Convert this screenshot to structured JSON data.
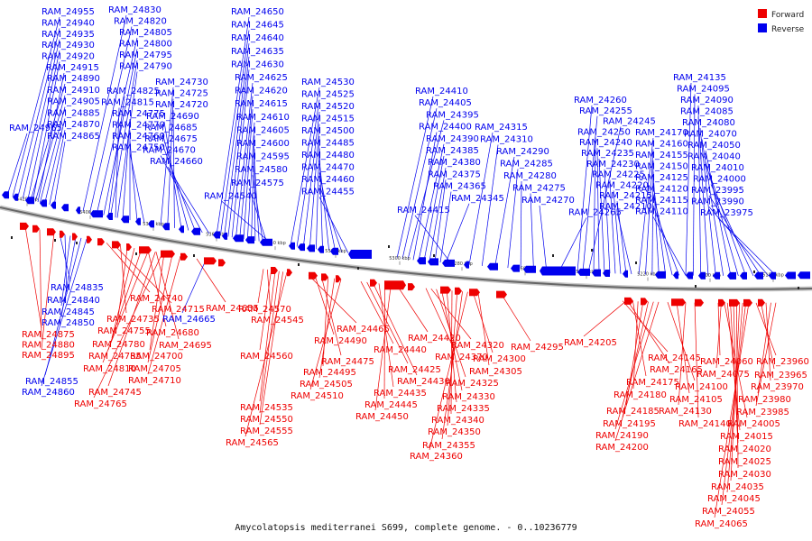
{
  "legend": {
    "forward": {
      "label": "Forward",
      "color": "#ee0000"
    },
    "reverse": {
      "label": "Reverse",
      "color": "#0000ee"
    }
  },
  "caption": "Amycolatopsis mediterranei S699, complete genome. - 0..10236779",
  "axis": {
    "ticks": [
      "5420 kbp",
      "5400 kbp",
      "5380 kbp",
      "5360 kbp",
      "5340 kbp",
      "5320 kbp",
      "5300 kbp",
      "5280 kbp",
      "5260 kbp",
      "5240 kbp",
      "5220 kbp",
      "5200 kbp",
      "5180 kbp"
    ]
  },
  "reverse_groups": [
    {
      "labels": [
        "RAM_24955",
        "RAM_24940",
        "RAM_24935",
        "RAM_24930",
        "RAM_24920",
        "RAM_24915"
      ]
    },
    {
      "labels": [
        "RAM_24890",
        "RAM_24910",
        "RAM_24905",
        "RAM_24885",
        "RAM_24870",
        "RAM_24865"
      ]
    },
    {
      "labels": [
        "RAM_24965"
      ]
    },
    {
      "labels": [
        "RAM_24830",
        "RAM_24820",
        "RAM_24805",
        "RAM_24800",
        "RAM_24795",
        "RAM_24790"
      ]
    },
    {
      "labels": [
        "RAM_24825",
        "RAM_24815",
        "RAM_24775",
        "RAM_24770",
        "RAM_24760",
        "RAM_24750"
      ]
    },
    {
      "labels": [
        "RAM_24730",
        "RAM_24725",
        "RAM_24720",
        "RAM_24690",
        "RAM_24685",
        "RAM_24675",
        "RAM_24670",
        "RAM_24660"
      ]
    },
    {
      "labels": [
        "RAM_24650",
        "RAM_24645",
        "RAM_24640",
        "RAM_24635",
        "RAM_24630",
        "RAM_24625",
        "RAM_24620",
        "RAM_24615",
        "RAM_24610",
        "RAM_24605",
        "RAM_24600",
        "RAM_24595",
        "RAM_24580",
        "RAM_24575",
        "RAM_24540"
      ]
    },
    {
      "labels": [
        "RAM_24530",
        "RAM_24525",
        "RAM_24520",
        "RAM_24515",
        "RAM_24500",
        "RAM_24485",
        "RAM_24480",
        "RAM_24470",
        "RAM_24460",
        "RAM_24455"
      ]
    },
    {
      "labels": [
        "RAM_24410",
        "RAM_24405",
        "RAM_24395",
        "RAM_24400",
        "RAM_24390",
        "RAM_24385",
        "RAM_24380",
        "RAM_24375",
        "RAM_24365",
        "RAM_24345",
        "RAM_24415"
      ]
    },
    {
      "labels": [
        "RAM_24315",
        "RAM_24310",
        "RAM_24290",
        "RAM_24285",
        "RAM_24280",
        "RAM_24275",
        "RAM_24270",
        "RAM_24265"
      ]
    },
    {
      "labels": [
        "RAM_24260",
        "RAM_24255",
        "RAM_24245",
        "RAM_24250",
        "RAM_24240",
        "RAM_24235",
        "RAM_24230",
        "RAM_24225",
        "RAM_24220",
        "RAM_24215",
        "RAM_24210"
      ]
    },
    {
      "labels": [
        "RAM_24170",
        "RAM_24160",
        "RAM_24155",
        "RAM_24150",
        "RAM_24125",
        "RAM_24120",
        "RAM_24115",
        "RAM_24110"
      ]
    },
    {
      "labels": [
        "RAM_24135",
        "RAM_24095",
        "RAM_24090",
        "RAM_24085",
        "RAM_24080",
        "RAM_24070",
        "RAM_24050",
        "RAM_24040",
        "RAM_24010",
        "RAM_24000",
        "RAM_23995",
        "RAM_23990",
        "RAM_23975"
      ]
    }
  ],
  "forward_groups": [
    {
      "labels": [
        "RAM_24835",
        "RAM_24840",
        "RAM_24845",
        "RAM_24850",
        "RAM_24855",
        "RAM_24860"
      ],
      "color": "blue"
    },
    {
      "labels": [
        "RAM_24875",
        "RAM_24880",
        "RAM_24895"
      ],
      "color": "red"
    },
    {
      "labels": [
        "RAM_24740",
        "RAM_24715",
        "RAM_24735",
        "RAM_24755",
        "RAM_24780",
        "RAM_24785",
        "RAM_24810",
        "RAM_24745",
        "RAM_24765"
      ],
      "color": "red"
    },
    {
      "labels": [
        "RAM_24680",
        "RAM_24695",
        "RAM_24700",
        "RAM_24705",
        "RAM_24710"
      ],
      "color": "red"
    },
    {
      "labels": [
        "RAM_24655",
        "RAM_24665"
      ],
      "color": "mixed"
    },
    {
      "labels": [
        "RAM_24570",
        "RAM_24545",
        "RAM_24560",
        "RAM_24535",
        "RAM_24550",
        "RAM_24555",
        "RAM_24565"
      ],
      "color": "red"
    },
    {
      "labels": [
        "RAM_24465",
        "RAM_24490",
        "RAM_24475",
        "RAM_24495",
        "RAM_24505",
        "RAM_24510"
      ],
      "color": "red"
    },
    {
      "labels": [
        "RAM_24440",
        "RAM_24425",
        "RAM_24430",
        "RAM_24435",
        "RAM_24445",
        "RAM_24450",
        "RAM_24420"
      ],
      "color": "red"
    },
    {
      "labels": [
        "RAM_24370",
        "RAM_24320",
        "RAM_24325",
        "RAM_24330",
        "RAM_24335",
        "RAM_24340",
        "RAM_24350",
        "RAM_24355",
        "RAM_24360",
        "RAM_24300",
        "RAM_24305"
      ],
      "color": "red"
    },
    {
      "labels": [
        "RAM_24295"
      ],
      "color": "red"
    },
    {
      "labels": [
        "RAM_24205"
      ],
      "color": "red"
    },
    {
      "labels": [
        "RAM_24145",
        "RAM_24165",
        "RAM_24175",
        "RAM_24180",
        "RAM_24185",
        "RAM_24195",
        "RAM_24190",
        "RAM_24200"
      ],
      "color": "red"
    },
    {
      "labels": [
        "RAM_24100",
        "RAM_24105",
        "RAM_24130",
        "RAM_24140"
      ],
      "color": "red"
    },
    {
      "labels": [
        "RAM_24060",
        "RAM_24075",
        "RAM_24005",
        "RAM_24015",
        "RAM_24020",
        "RAM_24025",
        "RAM_24030",
        "RAM_24035",
        "RAM_24045",
        "RAM_24055",
        "RAM_24065"
      ],
      "color": "red"
    },
    {
      "labels": [
        "RAM_23960",
        "RAM_23965",
        "RAM_23970",
        "RAM_23980",
        "RAM_23985"
      ],
      "color": "red"
    }
  ]
}
